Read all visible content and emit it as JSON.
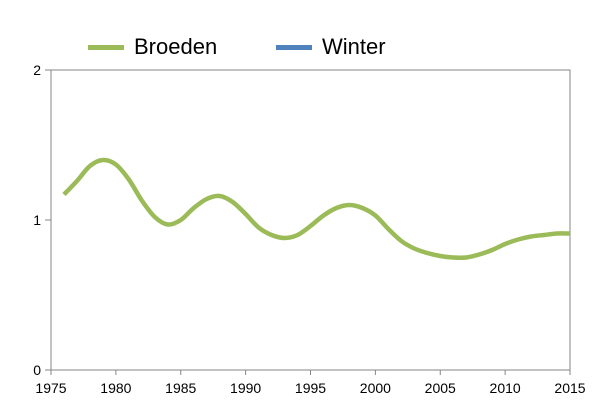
{
  "legend": {
    "items": [
      {
        "label": "Broeden",
        "color": "#9bbb59"
      },
      {
        "label": "Winter",
        "color": "#4f81bd"
      }
    ]
  },
  "chart_data": {
    "type": "line",
    "title": "",
    "xlabel": "",
    "ylabel": "",
    "xlim": [
      1975,
      2015
    ],
    "ylim": [
      0,
      2
    ],
    "x_ticks": [
      1975,
      1980,
      1985,
      1990,
      1995,
      2000,
      2005,
      2010,
      2015
    ],
    "y_ticks": [
      0,
      1,
      2
    ],
    "grid": false,
    "legend_position": "top",
    "series": [
      {
        "name": "Broeden",
        "color": "#9bbb59",
        "x": [
          1976,
          1977,
          1978,
          1979,
          1980,
          1981,
          1982,
          1983,
          1984,
          1985,
          1986,
          1987,
          1988,
          1989,
          1990,
          1991,
          1992,
          1993,
          1994,
          1995,
          1996,
          1997,
          1998,
          1999,
          2000,
          2001,
          2002,
          2003,
          2004,
          2005,
          2006,
          2007,
          2008,
          2009,
          2010,
          2011,
          2012,
          2013,
          2014,
          2015
        ],
        "y": [
          1.17,
          1.26,
          1.36,
          1.4,
          1.37,
          1.27,
          1.13,
          1.02,
          0.97,
          1.0,
          1.08,
          1.14,
          1.16,
          1.12,
          1.04,
          0.95,
          0.9,
          0.88,
          0.9,
          0.96,
          1.03,
          1.08,
          1.1,
          1.08,
          1.03,
          0.94,
          0.86,
          0.81,
          0.78,
          0.76,
          0.75,
          0.75,
          0.77,
          0.8,
          0.84,
          0.87,
          0.89,
          0.9,
          0.91,
          0.91
        ]
      },
      {
        "name": "Winter",
        "color": "#4f81bd",
        "x": [],
        "y": []
      }
    ]
  }
}
